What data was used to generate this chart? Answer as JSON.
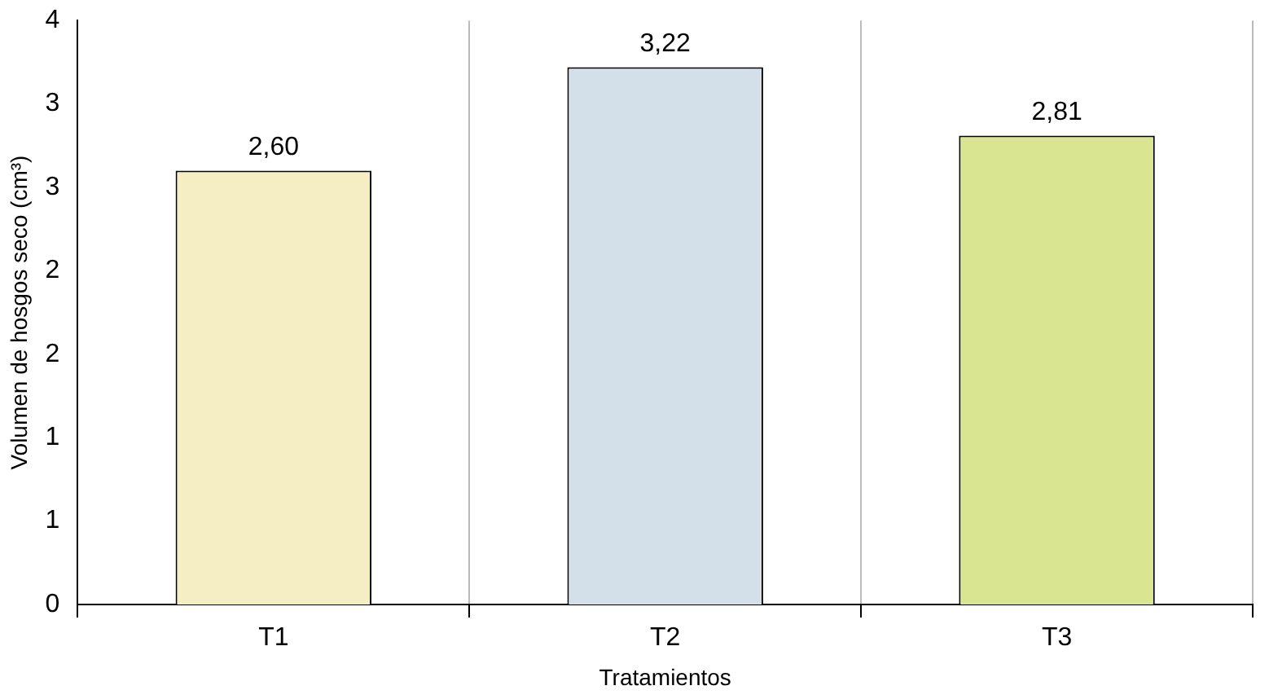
{
  "chart_data": {
    "type": "bar",
    "xlabel": "Tratamientos",
    "ylabel": "Volumen de hosgos seco (cm³)",
    "categories": [
      "T1",
      "T2",
      "T3"
    ],
    "values": [
      2.6,
      3.22,
      2.81
    ],
    "value_labels": [
      "2,60",
      "3,22",
      "2,81"
    ],
    "colors": [
      "#f6eec3",
      "#d3dfe9",
      "#d9e591"
    ],
    "ylim": [
      0,
      3.5
    ],
    "yticks": [
      0,
      {
        "value": 0.5,
        "label": "1"
      },
      1,
      {
        "value": 1.5,
        "label": "2"
      },
      2,
      {
        "value": 2.5,
        "label": "3"
      },
      3,
      {
        "value": 3.5,
        "label": "4"
      }
    ],
    "grid": "x",
    "legend": false
  }
}
